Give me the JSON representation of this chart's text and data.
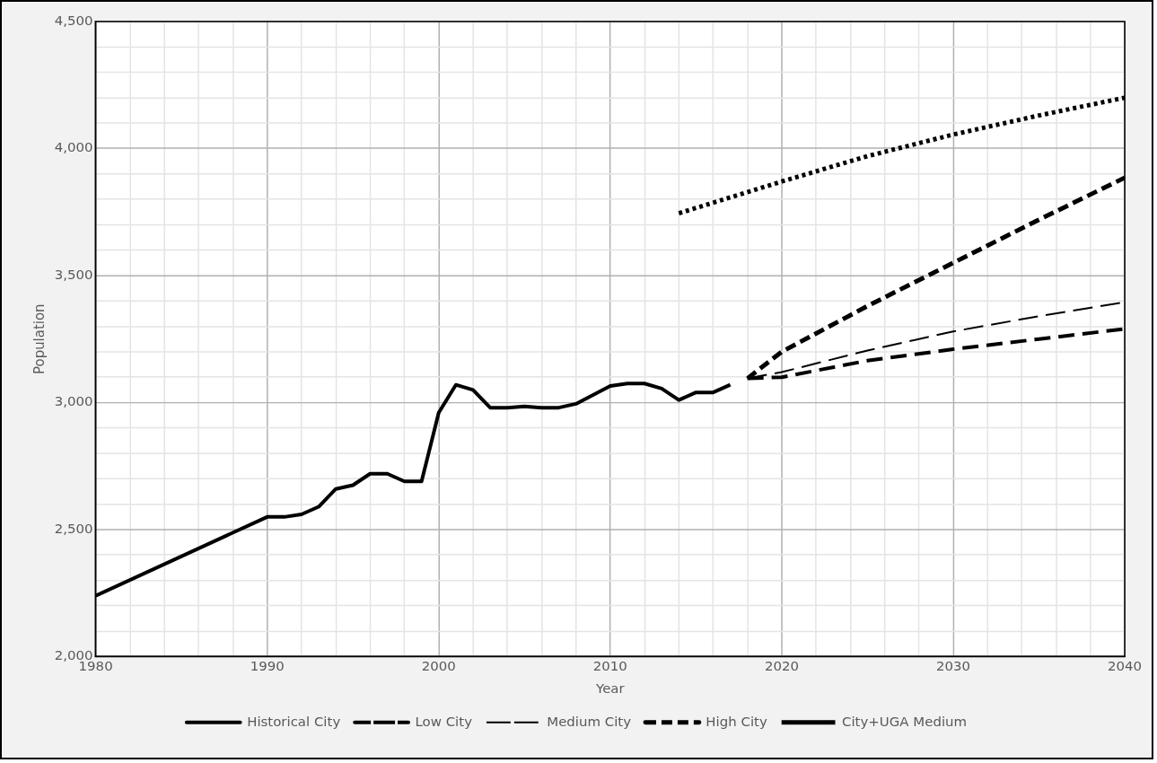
{
  "chart_data": {
    "type": "line",
    "xlabel": "Year",
    "ylabel": "Population",
    "xlim": [
      1980,
      2040
    ],
    "ylim": [
      2000,
      4500
    ],
    "xticks": [
      1980,
      {
        "value": 1982,
        "label": null
      },
      {
        "value": 1984,
        "label": null
      },
      {
        "value": 1986,
        "label": null
      },
      {
        "value": 1988,
        "label": null
      },
      1990,
      {
        "value": 1992,
        "label": null
      },
      {
        "value": 1994,
        "label": null
      },
      {
        "value": 1996,
        "label": null
      },
      {
        "value": 1998,
        "label": null
      },
      2000,
      {
        "value": 2002,
        "label": null
      },
      {
        "value": 2004,
        "label": null
      },
      {
        "value": 2006,
        "label": null
      },
      {
        "value": 2008,
        "label": null
      },
      2010,
      {
        "value": 2012,
        "label": null
      },
      {
        "value": 2014,
        "label": null
      },
      {
        "value": 2016,
        "label": null
      },
      {
        "value": 2018,
        "label": null
      },
      2020,
      {
        "value": 2022,
        "label": null
      },
      {
        "value": 2024,
        "label": null
      },
      {
        "value": 2026,
        "label": null
      },
      {
        "value": 2028,
        "label": null
      },
      2030,
      {
        "value": 2032,
        "label": null
      },
      {
        "value": 2034,
        "label": null
      },
      {
        "value": 2036,
        "label": null
      },
      {
        "value": 2038,
        "label": null
      },
      2040
    ],
    "yticks": [
      {
        "value": 2000,
        "label": "2,000"
      },
      {
        "value": 2100,
        "label": null
      },
      {
        "value": 2200,
        "label": null
      },
      {
        "value": 2300,
        "label": null
      },
      {
        "value": 2400,
        "label": null
      },
      {
        "value": 2500,
        "label": "2,500"
      },
      {
        "value": 2600,
        "label": null
      },
      {
        "value": 2700,
        "label": null
      },
      {
        "value": 2800,
        "label": null
      },
      {
        "value": 2900,
        "label": null
      },
      {
        "value": 3000,
        "label": "3,000"
      },
      {
        "value": 3100,
        "label": null
      },
      {
        "value": 3200,
        "label": null
      },
      {
        "value": 3300,
        "label": null
      },
      {
        "value": 3400,
        "label": null
      },
      {
        "value": 3500,
        "label": "3,500"
      },
      {
        "value": 3600,
        "label": null
      },
      {
        "value": 3700,
        "label": null
      },
      {
        "value": 3800,
        "label": null
      },
      {
        "value": 3900,
        "label": null
      },
      {
        "value": 4000,
        "label": "4,000"
      },
      {
        "value": 4100,
        "label": null
      },
      {
        "value": 4200,
        "label": null
      },
      {
        "value": 4300,
        "label": null
      },
      {
        "value": 4400,
        "label": null
      },
      {
        "value": 4500,
        "label": "4,500"
      }
    ],
    "grid": true,
    "legend": "bottom",
    "marker": "none",
    "series": [
      {
        "name": "Historical City",
        "color": "#000000",
        "line_style": "solid",
        "x": [
          1980,
          1990,
          1991,
          1992,
          1993,
          1994,
          1995,
          1996,
          1997,
          1998,
          1999,
          2000,
          2001,
          2002,
          2003,
          2004,
          2005,
          2006,
          2007,
          2008,
          2009,
          2010,
          2011,
          2012,
          2013,
          2014,
          2015,
          2016,
          2017
        ],
        "values": [
          2240,
          2550,
          2550,
          2560,
          2590,
          2660,
          2675,
          2720,
          2720,
          2690,
          2690,
          2960,
          3070,
          3050,
          2980,
          2980,
          2985,
          2980,
          2980,
          2995,
          3030,
          3065,
          3075,
          3075,
          3055,
          3010,
          3040,
          3040,
          3070
        ]
      },
      {
        "name": "Low City",
        "color": "#000000",
        "line_style": "dashed",
        "x": [
          2018,
          2020,
          2025,
          2030,
          2035,
          2040
        ],
        "values": [
          3095,
          3100,
          3165,
          3210,
          3250,
          3290
        ]
      },
      {
        "name": "Medium City",
        "color": "#000000",
        "line_style": "dashed",
        "x": [
          2018,
          2020,
          2025,
          2030,
          2035,
          2040
        ],
        "values": [
          3095,
          3120,
          3205,
          3280,
          3340,
          3395
        ]
      },
      {
        "name": "High City",
        "color": "#000000",
        "line_style": "dashed",
        "x": [
          2018,
          2020,
          2025,
          2030,
          2035,
          2040
        ],
        "values": [
          3095,
          3200,
          3380,
          3550,
          3720,
          3885
        ]
      },
      {
        "name": "City+UGA Medium",
        "color": "#000000",
        "line_style": "dotted",
        "x": [
          2014,
          2020,
          2025,
          2030,
          2035,
          2040
        ],
        "values": [
          3745,
          3870,
          3970,
          4055,
          4130,
          4200
        ]
      }
    ]
  }
}
